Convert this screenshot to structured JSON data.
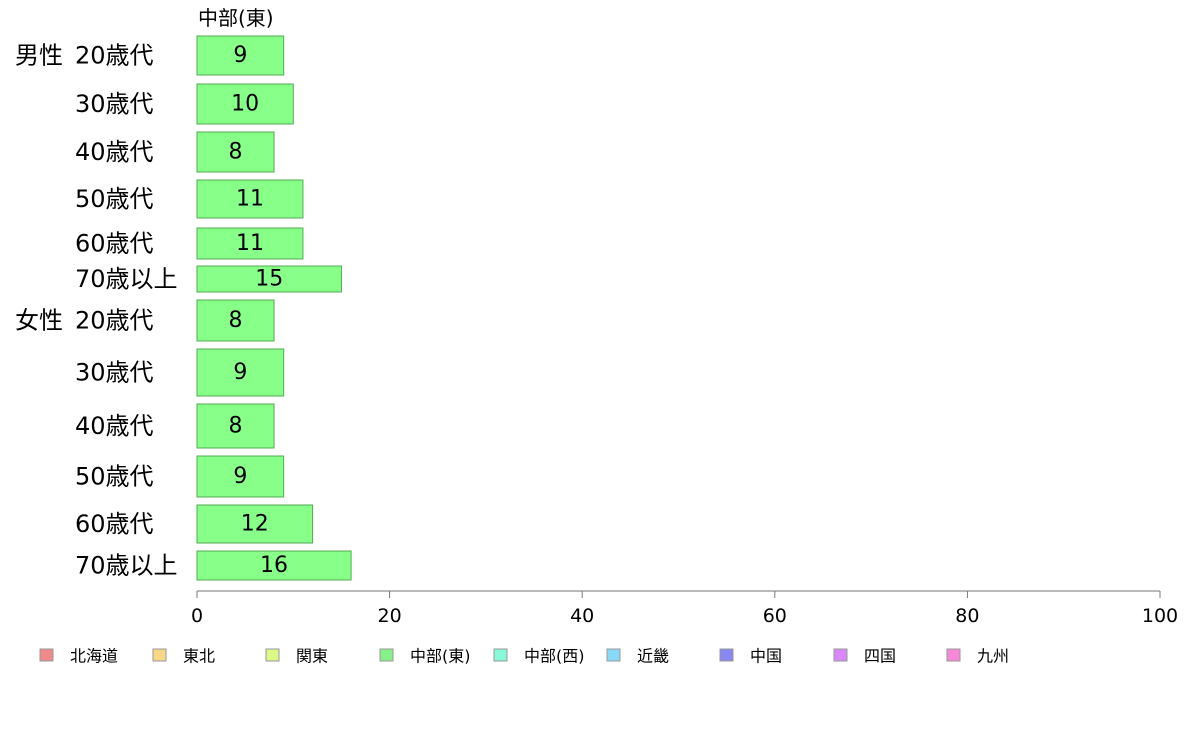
{
  "chart_data": {
    "type": "bar",
    "orientation": "horizontal",
    "title": "中部(東)",
    "groups": [
      {
        "label": "男性",
        "categories": [
          "20歳代",
          "30歳代",
          "40歳代",
          "50歳代",
          "60歳代",
          "70歳以上"
        ],
        "values": [
          9,
          10,
          8,
          11,
          11,
          15
        ]
      },
      {
        "label": "女性",
        "categories": [
          "20歳代",
          "30歳代",
          "40歳代",
          "50歳代",
          "60歳代",
          "70歳以上"
        ],
        "values": [
          8,
          9,
          8,
          9,
          12,
          16
        ]
      }
    ],
    "xlim": [
      0,
      100
    ],
    "xticks": [
      0,
      20,
      40,
      60,
      80,
      100
    ],
    "xlabel": "",
    "ylabel": "",
    "grid": false,
    "bar_color": "#88ff88",
    "bar_stroke": "#55aa55",
    "legend": {
      "placement": "bottom",
      "items": [
        {
          "label": "北海道",
          "color": "#f08a8a"
        },
        {
          "label": "東北",
          "color": "#f8d888"
        },
        {
          "label": "関東",
          "color": "#dcf888"
        },
        {
          "label": "中部(東)",
          "color": "#88f088"
        },
        {
          "label": "中部(西)",
          "color": "#88f8d8"
        },
        {
          "label": "近畿",
          "color": "#88d8f8"
        },
        {
          "label": "中国",
          "color": "#8888f0"
        },
        {
          "label": "四国",
          "color": "#d888f8"
        },
        {
          "label": "九州",
          "color": "#f888d8"
        }
      ]
    }
  }
}
